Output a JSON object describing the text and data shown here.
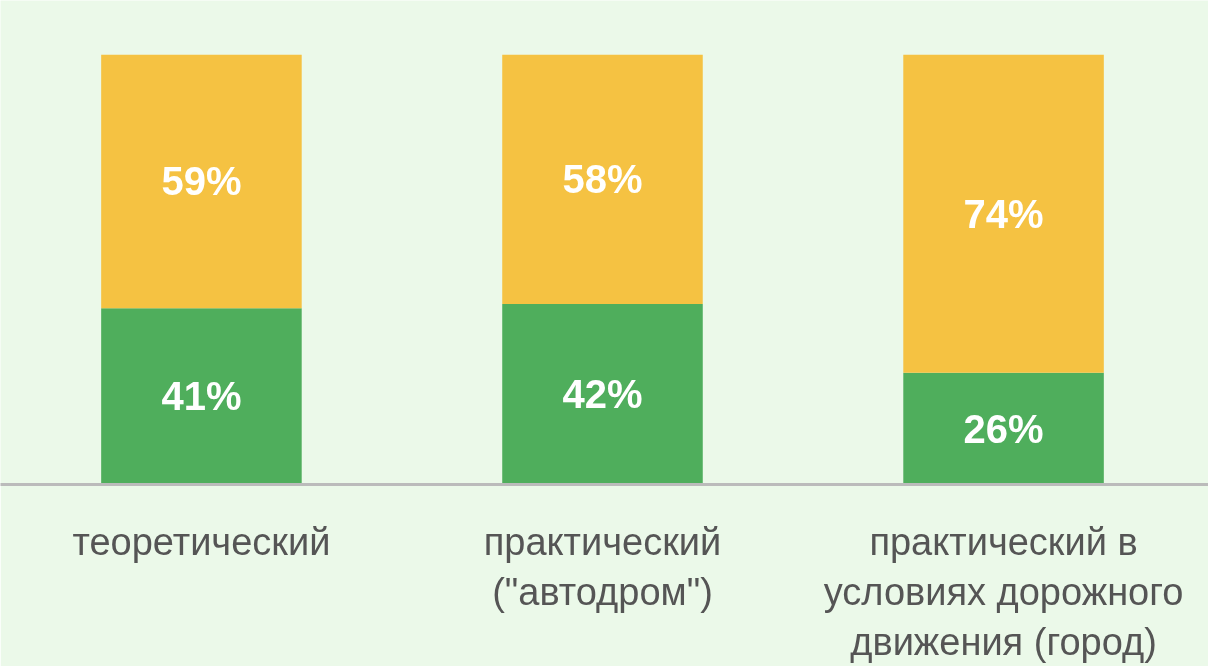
{
  "chart_data": {
    "type": "bar",
    "stacked": true,
    "categories": [
      "теоретический",
      "практический\n(\"автодром\")",
      "практический в\nусловиях дорожного\nдвижения (город)"
    ],
    "series": [
      {
        "color": "#4fae5c",
        "values": [
          41,
          42,
          26
        ],
        "value_labels": [
          "41%",
          "42%",
          "26%"
        ]
      },
      {
        "color": "#f5c242",
        "values": [
          59,
          58,
          74
        ],
        "value_labels": [
          "59%",
          "58%",
          "74%"
        ]
      }
    ],
    "grid": false
  }
}
